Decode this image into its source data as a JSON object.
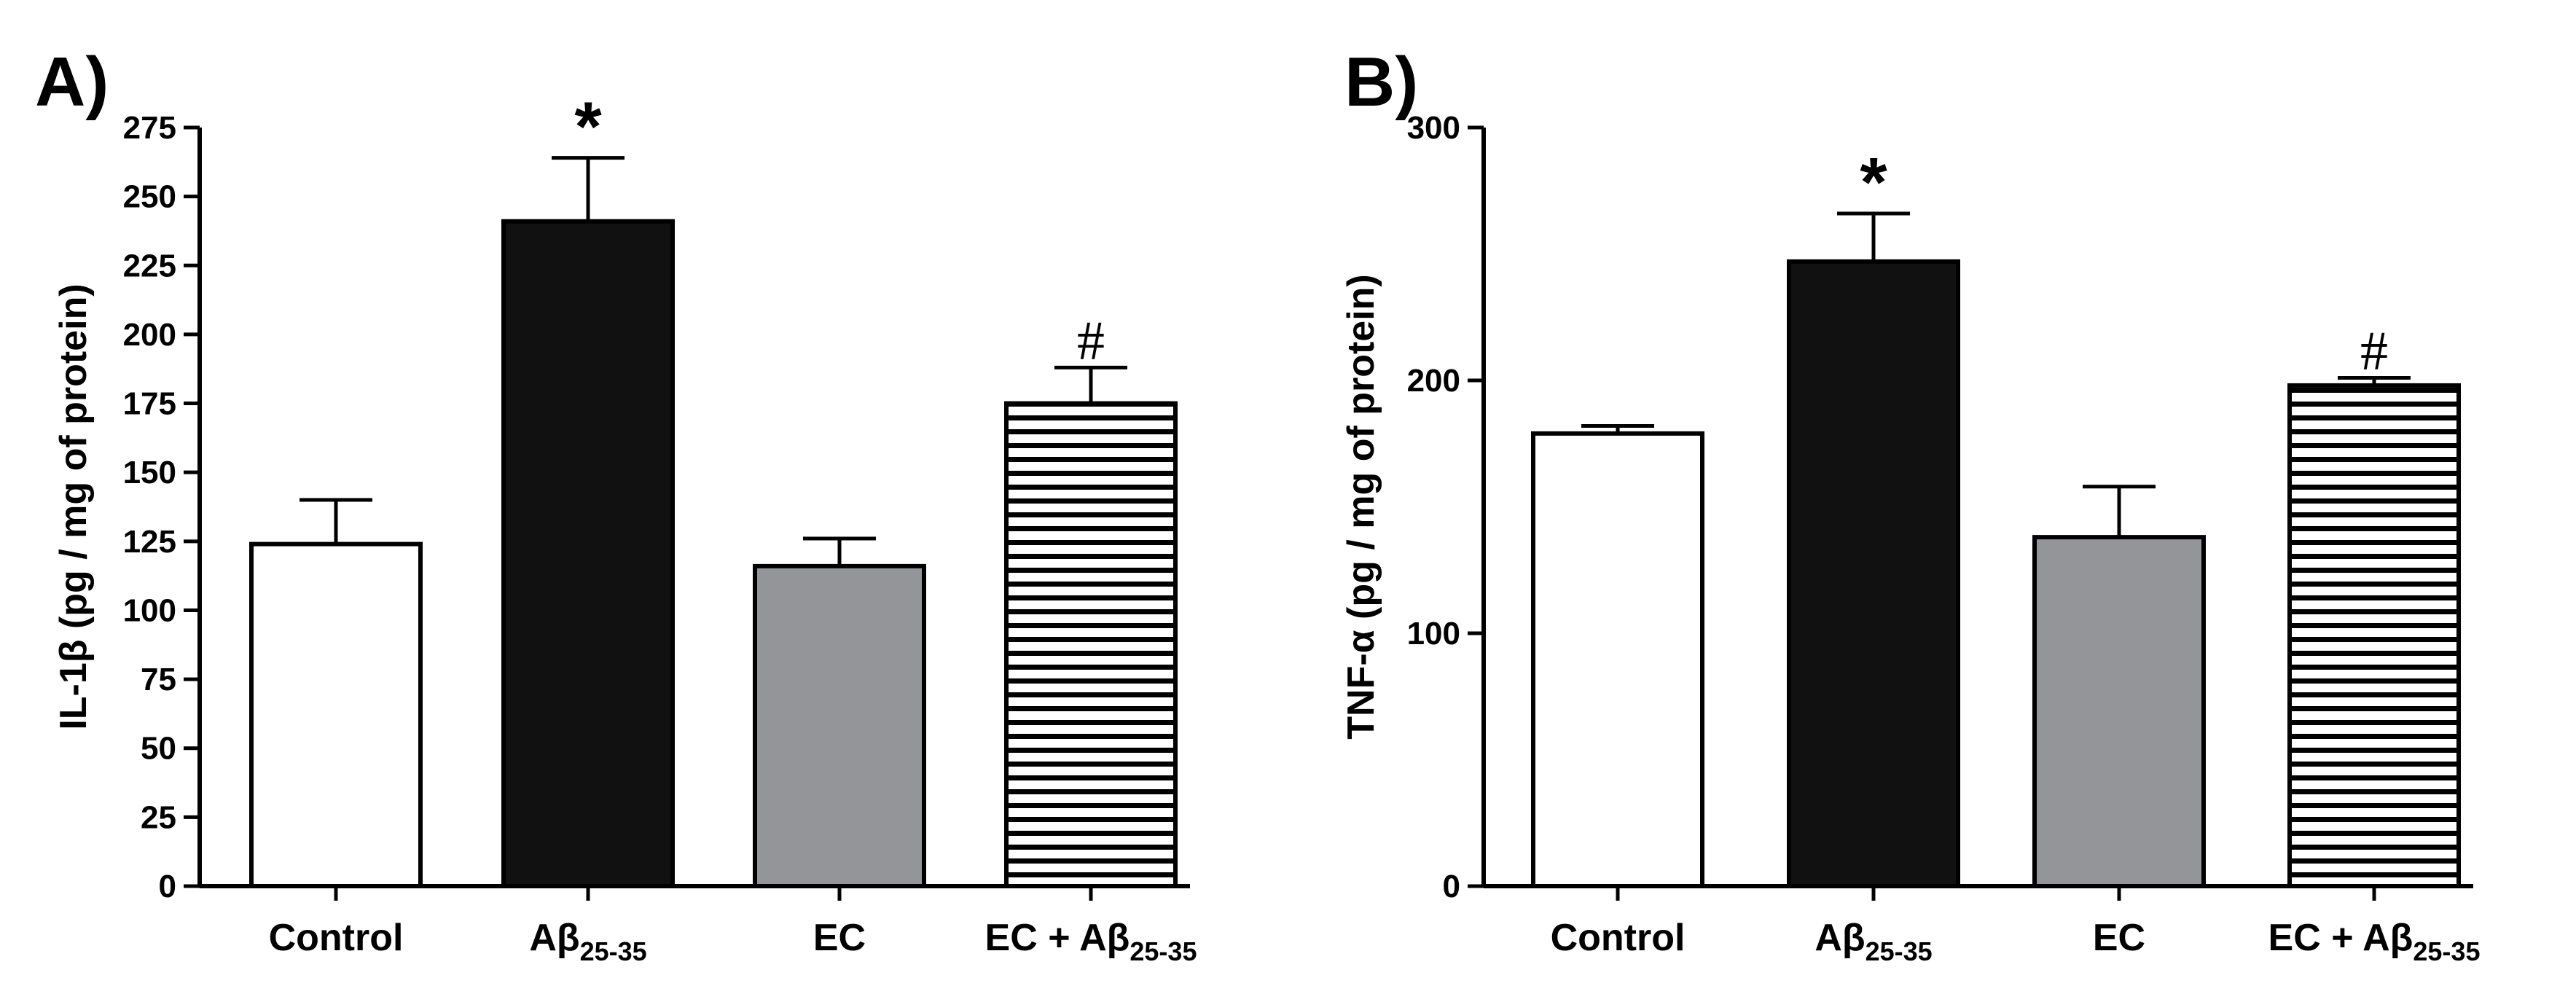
{
  "figure": {
    "colors": {
      "white_bar": "#ffffff",
      "black_bar": "#111111",
      "gray_bar": "#939598",
      "hatched_bar_stripe": "#000000",
      "axis": "#000000"
    }
  },
  "chart_data": [
    {
      "panel_label": "A)",
      "type": "bar",
      "ylabel": "IL-1β (pg / mg of protein)",
      "xlabel": "",
      "ylim": [
        0,
        275
      ],
      "yticks": [
        "0",
        "25",
        "50",
        "75",
        "100",
        "125",
        "150",
        "175",
        "200",
        "225",
        "250",
        "275"
      ],
      "categories": [
        {
          "main": "Control",
          "sub": ""
        },
        {
          "main": "Aβ",
          "sub": "25-35"
        },
        {
          "main": "EC",
          "sub": ""
        },
        {
          "main": "EC + Aβ",
          "sub": "25-35"
        }
      ],
      "values": [
        124,
        241,
        116,
        175
      ],
      "errors": [
        16,
        23,
        10,
        13
      ],
      "fills": [
        "white",
        "black",
        "gray",
        "hatched"
      ],
      "annotations": [
        "",
        "*",
        "",
        "#"
      ],
      "grid": false
    },
    {
      "panel_label": "B)",
      "type": "bar",
      "ylabel": "TNF-α (pg / mg of protein)",
      "xlabel": "",
      "ylim": [
        0,
        300
      ],
      "yticks": [
        "0",
        "100",
        "200",
        "300"
      ],
      "categories": [
        {
          "main": "Control",
          "sub": ""
        },
        {
          "main": "Aβ",
          "sub": "25-35"
        },
        {
          "main": "EC",
          "sub": ""
        },
        {
          "main": "EC + Aβ",
          "sub": "25-35"
        }
      ],
      "values": [
        179,
        247,
        138,
        198
      ],
      "errors": [
        3,
        19,
        20,
        3
      ],
      "fills": [
        "white",
        "black",
        "gray",
        "hatched"
      ],
      "annotations": [
        "",
        "*",
        "",
        "#"
      ],
      "grid": false
    }
  ]
}
